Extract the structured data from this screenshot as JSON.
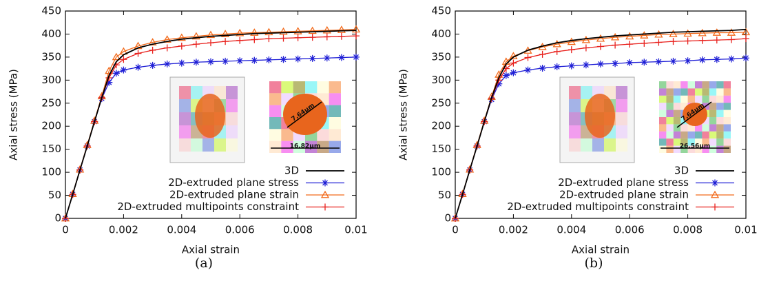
{
  "chart_data": [
    {
      "type": "line",
      "caption": "(a)",
      "x_label": "Axial strain",
      "y_label": "Axial stress (MPa)",
      "x": [
        0,
        0.00025,
        0.0005,
        0.00075,
        0.001,
        0.00125,
        0.0015,
        0.00175,
        0.002,
        0.0025,
        0.003,
        0.0035,
        0.004,
        0.0045,
        0.005,
        0.0055,
        0.006,
        0.0065,
        0.007,
        0.0075,
        0.008,
        0.0085,
        0.009,
        0.0095,
        0.01
      ],
      "series": [
        {
          "name": "3D",
          "color": "#000000",
          "marker": "none",
          "values": [
            0,
            52,
            105,
            157,
            210,
            262,
            310,
            340,
            355,
            370,
            378,
            384,
            389,
            392,
            395,
            397,
            399,
            401,
            402,
            403,
            404,
            405,
            406,
            407,
            408
          ]
        },
        {
          "name": "2D-extruded plane stress",
          "color": "#1f1fd6",
          "marker": "star",
          "values": [
            0,
            52,
            105,
            157,
            210,
            260,
            295,
            315,
            322,
            328,
            332,
            335,
            337,
            339,
            340,
            341,
            342,
            343,
            344,
            345,
            346,
            347,
            348,
            349,
            350
          ]
        },
        {
          "name": "2D-extruded plane strain",
          "color": "#f26a1b",
          "marker": "triangle",
          "values": [
            0,
            53,
            106,
            159,
            212,
            265,
            320,
            350,
            362,
            374,
            382,
            388,
            392,
            395,
            398,
            400,
            402,
            403,
            404,
            405,
            406,
            407,
            408,
            409,
            410
          ]
        },
        {
          "name": "2D-extruded multipoints constraint",
          "color": "#e8201c",
          "marker": "plus",
          "values": [
            0,
            52,
            105,
            157,
            210,
            262,
            305,
            333,
            345,
            358,
            365,
            370,
            374,
            378,
            381,
            384,
            386,
            388,
            390,
            391,
            392,
            393,
            394,
            395,
            396
          ]
        }
      ],
      "xlim": [
        0,
        0.01
      ],
      "xticks": [
        0,
        0.002,
        0.004,
        0.006,
        0.008,
        0.01
      ],
      "ylim": [
        0,
        450
      ],
      "yticks": [
        0,
        50,
        100,
        150,
        200,
        250,
        300,
        350,
        400,
        450
      ],
      "legend": "lower right",
      "annotations": [
        "7.64µm",
        "16.82µm"
      ]
    },
    {
      "type": "line",
      "caption": "(b)",
      "x_label": "Axial strain",
      "y_label": "Axial stress (MPa)",
      "x": [
        0,
        0.00025,
        0.0005,
        0.00075,
        0.001,
        0.00125,
        0.0015,
        0.00175,
        0.002,
        0.0025,
        0.003,
        0.0035,
        0.004,
        0.0045,
        0.005,
        0.0055,
        0.006,
        0.0065,
        0.007,
        0.0075,
        0.008,
        0.0085,
        0.009,
        0.0095,
        0.01
      ],
      "series": [
        {
          "name": "3D",
          "color": "#000000",
          "marker": "none",
          "values": [
            0,
            52,
            105,
            157,
            210,
            262,
            305,
            335,
            350,
            365,
            374,
            381,
            386,
            390,
            393,
            396,
            398,
            400,
            402,
            404,
            405,
            406,
            407,
            408,
            410
          ]
        },
        {
          "name": "2D-extruded plane stress",
          "color": "#1f1fd6",
          "marker": "star",
          "values": [
            0,
            52,
            105,
            157,
            210,
            258,
            292,
            310,
            316,
            322,
            326,
            329,
            331,
            333,
            335,
            336,
            338,
            339,
            340,
            341,
            342,
            344,
            345,
            346,
            348
          ]
        },
        {
          "name": "2D-extruded plane strain",
          "color": "#f26a1b",
          "marker": "triangle",
          "values": [
            0,
            53,
            106,
            159,
            212,
            264,
            312,
            340,
            352,
            364,
            372,
            378,
            383,
            387,
            390,
            393,
            395,
            397,
            399,
            400,
            401,
            402,
            403,
            403,
            404
          ]
        },
        {
          "name": "2D-extruded multipoints constraint",
          "color": "#e8201c",
          "marker": "plus",
          "values": [
            0,
            52,
            105,
            157,
            210,
            260,
            300,
            325,
            337,
            349,
            356,
            362,
            366,
            370,
            373,
            376,
            378,
            380,
            382,
            384,
            385,
            386,
            387,
            388,
            390
          ]
        }
      ],
      "xlim": [
        0,
        0.01
      ],
      "xticks": [
        0,
        0.002,
        0.004,
        0.006,
        0.008,
        0.01
      ],
      "ylim": [
        0,
        450
      ],
      "yticks": [
        0,
        50,
        100,
        150,
        200,
        250,
        300,
        350,
        400,
        450
      ],
      "legend": "lower right",
      "annotations": [
        "7.64µm",
        "26.56µm"
      ]
    }
  ]
}
